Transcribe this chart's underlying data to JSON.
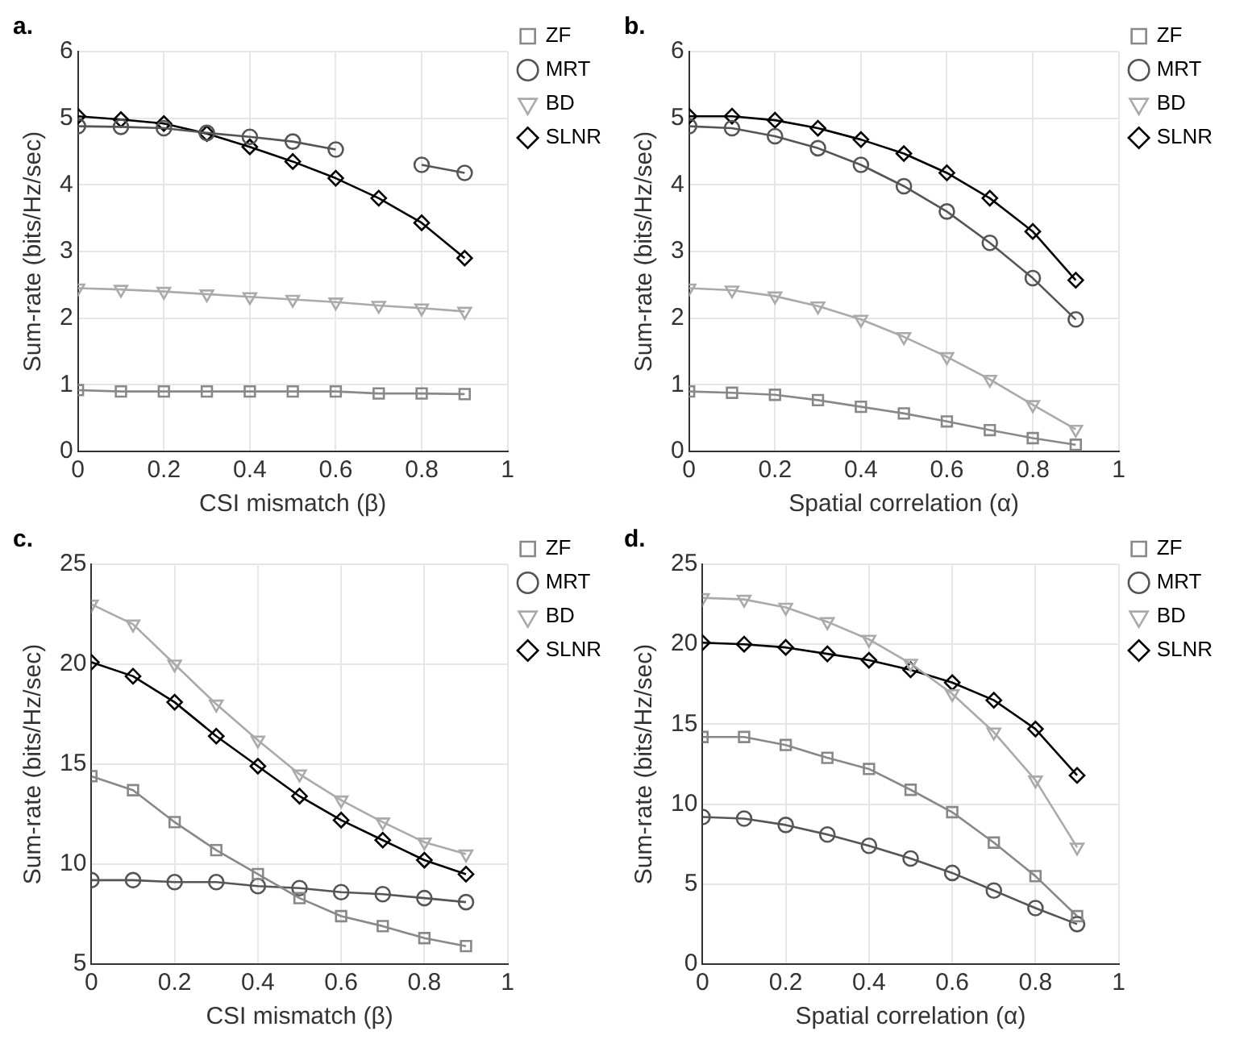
{
  "chart_data": [
    {
      "type": "line",
      "title": "a.",
      "xlabel": "CSI mismatch (β)",
      "ylabel": "Sum-rate (bits/Hz/sec)",
      "x": [
        0,
        0.1,
        0.2,
        0.3,
        0.4,
        0.5,
        0.6,
        0.7,
        0.8,
        0.9
      ],
      "xlim": [
        0,
        1
      ],
      "xticks": [
        0,
        0.2,
        0.4,
        0.6,
        0.8,
        1
      ],
      "ylim": [
        0,
        6
      ],
      "yticks": [
        0,
        1,
        2,
        3,
        4,
        5,
        6
      ],
      "grid": true,
      "legend": "top right",
      "series": [
        {
          "name": "ZF",
          "color": "#888888",
          "marker": "square",
          "values": [
            0.92,
            0.9,
            0.9,
            0.9,
            0.9,
            0.9,
            0.9,
            0.87,
            0.87,
            0.86
          ]
        },
        {
          "name": "MRT",
          "color": "#555555",
          "marker": "circle",
          "values": [
            4.88,
            4.87,
            4.85,
            4.78,
            4.72,
            4.65,
            4.53,
            null,
            4.3,
            4.18
          ]
        },
        {
          "name": "BD",
          "color": "#aaaaaa",
          "marker": "triangle",
          "values": [
            2.45,
            2.43,
            2.4,
            2.36,
            2.32,
            2.28,
            2.24,
            2.19,
            2.15,
            2.1
          ]
        },
        {
          "name": "SLNR",
          "color": "#000000",
          "marker": "diamond",
          "values": [
            5.03,
            4.98,
            4.92,
            4.77,
            4.57,
            4.35,
            4.1,
            3.8,
            3.43,
            2.9
          ]
        }
      ]
    },
    {
      "type": "line",
      "title": "b.",
      "xlabel": "Spatial correlation (α)",
      "ylabel": "Sum-rate (bits/Hz/sec)",
      "x": [
        0,
        0.1,
        0.2,
        0.3,
        0.4,
        0.5,
        0.6,
        0.7,
        0.8,
        0.9
      ],
      "xlim": [
        0,
        1
      ],
      "xticks": [
        0,
        0.2,
        0.4,
        0.6,
        0.8,
        1
      ],
      "ylim": [
        0,
        6
      ],
      "yticks": [
        0,
        1,
        2,
        3,
        4,
        5,
        6
      ],
      "grid": true,
      "legend": "top right",
      "series": [
        {
          "name": "ZF",
          "color": "#888888",
          "marker": "square",
          "values": [
            0.9,
            0.88,
            0.85,
            0.77,
            0.67,
            0.57,
            0.45,
            0.32,
            0.2,
            0.1
          ]
        },
        {
          "name": "MRT",
          "color": "#555555",
          "marker": "circle",
          "values": [
            4.88,
            4.85,
            4.73,
            4.55,
            4.3,
            3.98,
            3.6,
            3.13,
            2.6,
            1.98
          ]
        },
        {
          "name": "BD",
          "color": "#aaaaaa",
          "marker": "triangle",
          "values": [
            2.45,
            2.42,
            2.33,
            2.18,
            1.98,
            1.72,
            1.42,
            1.08,
            0.7,
            0.33
          ]
        },
        {
          "name": "SLNR",
          "color": "#000000",
          "marker": "diamond",
          "values": [
            5.03,
            5.03,
            4.97,
            4.85,
            4.68,
            4.47,
            4.18,
            3.8,
            3.3,
            2.57
          ]
        }
      ]
    },
    {
      "type": "line",
      "title": "c.",
      "xlabel": "CSI mismatch (β)",
      "ylabel": "Sum-rate (bits/Hz/sec)",
      "x": [
        0,
        0.1,
        0.2,
        0.3,
        0.4,
        0.5,
        0.6,
        0.7,
        0.8,
        0.9
      ],
      "xlim": [
        0,
        1
      ],
      "xticks": [
        0,
        0.2,
        0.4,
        0.6,
        0.8,
        1
      ],
      "ylim": [
        5,
        25
      ],
      "yticks": [
        5,
        10,
        15,
        20,
        25
      ],
      "grid": true,
      "legend": "top right",
      "series": [
        {
          "name": "ZF",
          "color": "#888888",
          "marker": "square",
          "values": [
            14.4,
            13.7,
            12.1,
            10.7,
            9.5,
            8.3,
            7.4,
            6.9,
            6.3,
            5.9
          ]
        },
        {
          "name": "MRT",
          "color": "#555555",
          "marker": "circle",
          "values": [
            9.2,
            9.2,
            9.1,
            9.1,
            8.9,
            8.8,
            8.6,
            8.5,
            8.3,
            8.1
          ]
        },
        {
          "name": "BD",
          "color": "#aaaaaa",
          "marker": "triangle",
          "values": [
            23,
            22,
            20,
            18,
            16.2,
            14.5,
            13.2,
            12.1,
            11.1,
            10.5
          ]
        },
        {
          "name": "SLNR",
          "color": "#000000",
          "marker": "diamond",
          "values": [
            20.1,
            19.4,
            18.1,
            16.4,
            14.9,
            13.4,
            12.2,
            11.2,
            10.2,
            9.5
          ]
        }
      ]
    },
    {
      "type": "line",
      "title": "d.",
      "xlabel": "Spatial correlation (α)",
      "ylabel": "Sum-rate (bits/Hz/sec)",
      "x": [
        0,
        0.1,
        0.2,
        0.3,
        0.4,
        0.5,
        0.6,
        0.7,
        0.8,
        0.9
      ],
      "xlim": [
        0,
        1
      ],
      "xticks": [
        0,
        0.2,
        0.4,
        0.6,
        0.8,
        1
      ],
      "ylim": [
        0,
        25
      ],
      "yticks": [
        0,
        5,
        10,
        15,
        20,
        25
      ],
      "grid": true,
      "legend": "top right",
      "series": [
        {
          "name": "ZF",
          "color": "#888888",
          "marker": "square",
          "values": [
            14.2,
            14.2,
            13.7,
            12.9,
            12.2,
            10.9,
            9.5,
            7.6,
            5.5,
            3.0
          ]
        },
        {
          "name": "MRT",
          "color": "#555555",
          "marker": "circle",
          "values": [
            9.2,
            9.1,
            8.7,
            8.1,
            7.4,
            6.6,
            5.7,
            4.6,
            3.5,
            2.5
          ]
        },
        {
          "name": "BD",
          "color": "#aaaaaa",
          "marker": "triangle",
          "values": [
            22.9,
            22.8,
            22.3,
            21.4,
            20.3,
            18.8,
            16.9,
            14.5,
            11.5,
            7.3
          ]
        },
        {
          "name": "SLNR",
          "color": "#000000",
          "marker": "diamond",
          "values": [
            20.1,
            20.0,
            19.8,
            19.4,
            19.0,
            18.4,
            17.6,
            16.5,
            14.7,
            11.8
          ]
        }
      ]
    }
  ]
}
